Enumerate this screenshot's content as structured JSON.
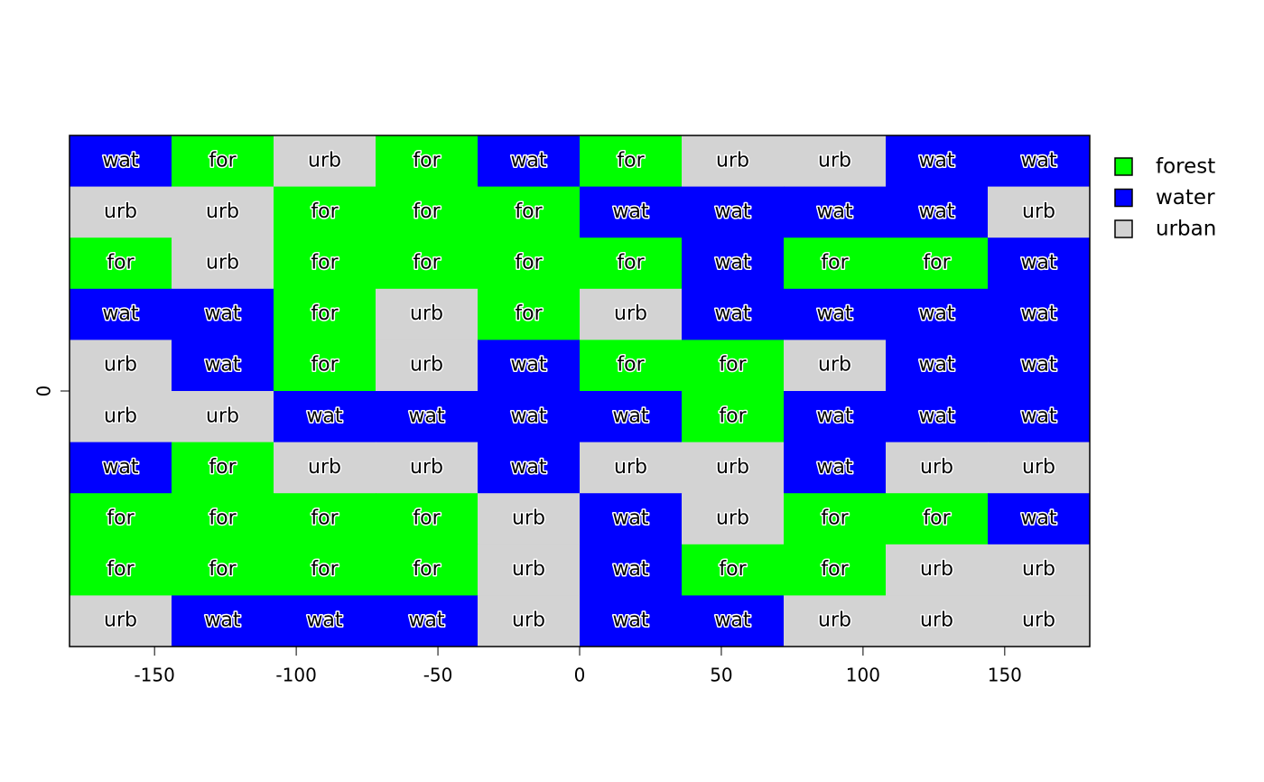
{
  "chart_data": {
    "type": "raster",
    "xlim": [
      -180,
      180
    ],
    "ylim": [
      -90,
      90
    ],
    "xticks": [
      -150,
      -100,
      -50,
      0,
      50,
      100,
      150
    ],
    "yticks": [
      0
    ],
    "legend": "right",
    "classes": [
      {
        "name": "forest",
        "abbr": "for",
        "color": "#00ff00"
      },
      {
        "name": "water",
        "abbr": "wat",
        "color": "#0000ff"
      },
      {
        "name": "urban",
        "abbr": "urb",
        "color": "#d3d3d3"
      }
    ],
    "rows": [
      [
        "wat",
        "for",
        "urb",
        "for",
        "wat",
        "for",
        "urb",
        "urb",
        "wat",
        "wat"
      ],
      [
        "urb",
        "urb",
        "for",
        "for",
        "for",
        "wat",
        "wat",
        "wat",
        "wat",
        "urb"
      ],
      [
        "for",
        "urb",
        "for",
        "for",
        "for",
        "for",
        "wat",
        "for",
        "for",
        "wat"
      ],
      [
        "wat",
        "wat",
        "for",
        "urb",
        "for",
        "urb",
        "wat",
        "wat",
        "wat",
        "wat"
      ],
      [
        "urb",
        "wat",
        "for",
        "urb",
        "wat",
        "for",
        "for",
        "urb",
        "wat",
        "wat"
      ],
      [
        "urb",
        "urb",
        "wat",
        "wat",
        "wat",
        "wat",
        "for",
        "wat",
        "wat",
        "wat"
      ],
      [
        "wat",
        "for",
        "urb",
        "urb",
        "wat",
        "urb",
        "urb",
        "wat",
        "urb",
        "urb"
      ],
      [
        "for",
        "for",
        "for",
        "for",
        "urb",
        "wat",
        "urb",
        "for",
        "for",
        "wat"
      ],
      [
        "for",
        "for",
        "for",
        "for",
        "urb",
        "wat",
        "for",
        "for",
        "urb",
        "urb"
      ],
      [
        "urb",
        "wat",
        "wat",
        "wat",
        "urb",
        "wat",
        "wat",
        "urb",
        "urb",
        "urb"
      ]
    ]
  }
}
